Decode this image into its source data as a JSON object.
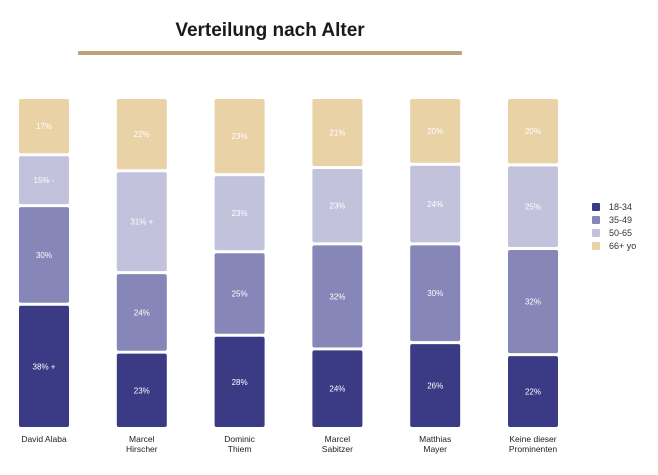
{
  "title": "Verteilung nach Alter",
  "colors": {
    "rule": "#b9a37a",
    "background": "#ffffff"
  },
  "chart_data": {
    "type": "bar",
    "stacked": true,
    "percent": true,
    "categories": [
      [
        "David Alaba"
      ],
      [
        "Marcel",
        "Hirscher"
      ],
      [
        "Dominic",
        "Thiem"
      ],
      [
        "Marcel",
        "Sabitzer"
      ],
      [
        "Matthias",
        "Mayer"
      ],
      [
        "Keine dieser",
        "Prominenten"
      ]
    ],
    "series": [
      {
        "name": "18-34",
        "color": "#3b3a85",
        "text_color": "#ffffff",
        "values": [
          38,
          23,
          28,
          24,
          26,
          22
        ],
        "labels": [
          "38% +",
          "23%",
          "28%",
          "24%",
          "26%",
          "22%"
        ]
      },
      {
        "name": "35-49",
        "color": "#8786b8",
        "text_color": "#ffffff",
        "values": [
          30,
          24,
          25,
          32,
          30,
          32
        ],
        "labels": [
          "30%",
          "24%",
          "25%",
          "32%",
          "30%",
          "32%"
        ]
      },
      {
        "name": "50-65",
        "color": "#c3c2dc",
        "text_color": "#ffffff",
        "values": [
          15,
          31,
          23,
          23,
          24,
          25
        ],
        "labels": [
          "15% -",
          "31% +",
          "23%",
          "23%",
          "24%",
          "25%"
        ]
      },
      {
        "name": "66+ yo",
        "color": "#e8d2a6",
        "text_color": "#ffffff",
        "values": [
          17,
          22,
          23,
          21,
          20,
          20
        ],
        "labels": [
          "17%",
          "22%",
          "23%",
          "21%",
          "20%",
          "20%"
        ]
      }
    ],
    "legend_position": "right",
    "grid": false
  }
}
